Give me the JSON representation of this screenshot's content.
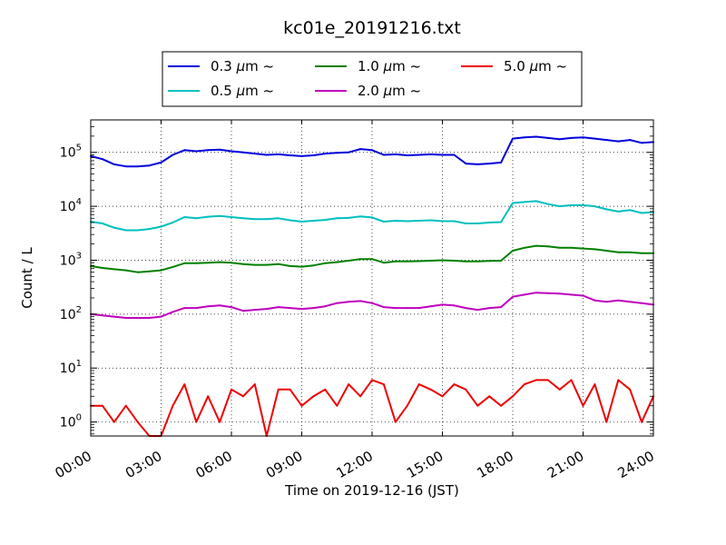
{
  "chart_data": {
    "type": "line",
    "title": "kc01e_20191216.txt",
    "xlabel": "Time on 2019-12-16 (JST)",
    "ylabel": "Count / L",
    "yscale": "log",
    "xlim": [
      "00:00",
      "24:00"
    ],
    "ylim": [
      0.55,
      400000
    ],
    "grid": true,
    "legend_position": "top-center",
    "x_ticks": [
      "00:00",
      "03:00",
      "06:00",
      "09:00",
      "12:00",
      "15:00",
      "18:00",
      "21:00",
      "24:00"
    ],
    "y_ticks": [
      {
        "value": 1,
        "base": "10",
        "exp": "0"
      },
      {
        "value": 10,
        "base": "10",
        "exp": "1"
      },
      {
        "value": 100,
        "base": "10",
        "exp": "2"
      },
      {
        "value": 1000,
        "base": "10",
        "exp": "3"
      },
      {
        "value": 10000,
        "base": "10",
        "exp": "4"
      },
      {
        "value": 100000,
        "base": "10",
        "exp": "5"
      }
    ],
    "x": [
      "00:00",
      "00:30",
      "01:00",
      "01:30",
      "02:00",
      "02:30",
      "03:00",
      "03:30",
      "04:00",
      "04:30",
      "05:00",
      "05:30",
      "06:00",
      "06:30",
      "07:00",
      "07:30",
      "08:00",
      "08:30",
      "09:00",
      "09:30",
      "10:00",
      "10:30",
      "11:00",
      "11:30",
      "12:00",
      "12:30",
      "13:00",
      "13:30",
      "14:00",
      "14:30",
      "15:00",
      "15:30",
      "16:00",
      "16:30",
      "17:00",
      "17:30",
      "18:00",
      "18:30",
      "19:00",
      "19:30",
      "20:00",
      "20:30",
      "21:00",
      "21:30",
      "22:00",
      "22:30",
      "23:00",
      "23:30",
      "24:00"
    ],
    "series": [
      {
        "name": "0.3 μm ~",
        "label_text": "0.3",
        "color": "#0000dd",
        "values": [
          85000,
          75000,
          60000,
          55000,
          55000,
          57000,
          65000,
          90000,
          110000,
          105000,
          110000,
          112000,
          105000,
          100000,
          95000,
          90000,
          92000,
          88000,
          85000,
          88000,
          95000,
          98000,
          100000,
          115000,
          110000,
          90000,
          92000,
          88000,
          90000,
          92000,
          90000,
          90000,
          62000,
          60000,
          62000,
          65000,
          180000,
          190000,
          195000,
          185000,
          175000,
          185000,
          190000,
          180000,
          170000,
          160000,
          170000,
          150000,
          155000
        ]
      },
      {
        "name": "0.5 μm ~",
        "label_text": "0.5",
        "color": "#00bfbf",
        "values": [
          5200,
          4800,
          4000,
          3600,
          3600,
          3800,
          4200,
          5000,
          6300,
          6000,
          6400,
          6600,
          6300,
          6000,
          5800,
          5800,
          6000,
          5500,
          5200,
          5400,
          5600,
          6000,
          6100,
          6500,
          6200,
          5200,
          5400,
          5300,
          5400,
          5500,
          5300,
          5300,
          4800,
          4800,
          5000,
          5100,
          11500,
          12000,
          12500,
          11000,
          10000,
          10500,
          10500,
          10000,
          8800,
          8000,
          8500,
          7500,
          7800
        ]
      },
      {
        "name": "1.0 μm ~",
        "label_text": "1.0",
        "color": "#008000",
        "values": [
          780,
          720,
          680,
          650,
          600,
          620,
          650,
          750,
          880,
          880,
          900,
          920,
          900,
          850,
          820,
          820,
          850,
          780,
          760,
          800,
          880,
          920,
          980,
          1050,
          1050,
          900,
          950,
          950,
          960,
          980,
          1000,
          980,
          950,
          950,
          970,
          980,
          1500,
          1700,
          1850,
          1800,
          1700,
          1700,
          1650,
          1600,
          1500,
          1400,
          1400,
          1350,
          1350
        ]
      },
      {
        "name": "2.0 μm ~",
        "label_text": "2.0",
        "color": "#bf00bf",
        "values": [
          100,
          95,
          90,
          85,
          85,
          85,
          90,
          110,
          130,
          130,
          140,
          145,
          135,
          115,
          120,
          125,
          135,
          130,
          125,
          130,
          140,
          160,
          170,
          175,
          160,
          135,
          130,
          130,
          130,
          140,
          150,
          145,
          130,
          120,
          130,
          135,
          210,
          230,
          250,
          245,
          240,
          230,
          220,
          180,
          170,
          180,
          170,
          160,
          150
        ]
      },
      {
        "name": "5.0 μm ~",
        "label_text": "5.0",
        "color": "#ee0000",
        "values": [
          2,
          2,
          1,
          2,
          1,
          0.55,
          0.55,
          2,
          5,
          1,
          3,
          1,
          4,
          3,
          5,
          0.55,
          4,
          4,
          2,
          3,
          4,
          2,
          5,
          3,
          6,
          5,
          1,
          2,
          5,
          4,
          3,
          5,
          4,
          2,
          3,
          2,
          3,
          5,
          6,
          6,
          4,
          6,
          2,
          5,
          1,
          6,
          4,
          1,
          3
        ]
      }
    ]
  }
}
